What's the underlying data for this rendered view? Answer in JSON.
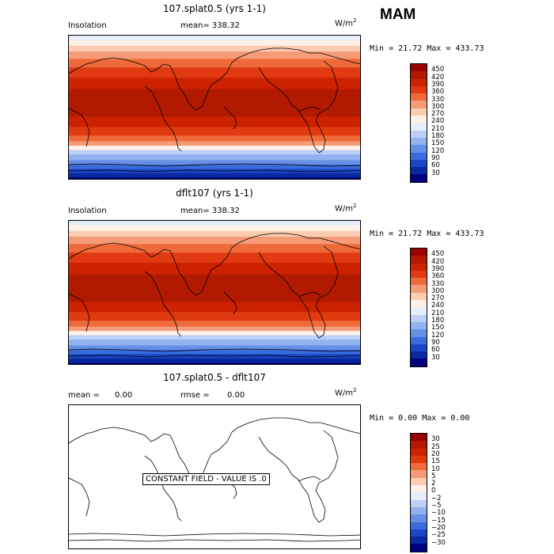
{
  "season": "MAM",
  "panels": [
    {
      "title": "107.splat0.5 (yrs 1-1)",
      "variable": "Insolation",
      "stat_text": "mean= 338.32",
      "units": "W/m",
      "units_sup": "2",
      "minmax": "Min =  21.72 Max = 433.73",
      "levels": [
        "450",
        "420",
        "390",
        "360",
        "330",
        "300",
        "270",
        "240",
        "210",
        "180",
        "150",
        "120",
        "90",
        "60",
        "30"
      ],
      "colors": [
        "#990000",
        "#b21a00",
        "#cc2200",
        "#e03a10",
        "#ef6a3a",
        "#f59b78",
        "#fbcbb2",
        "#fef0e6",
        "#e6eefc",
        "#bcd0f6",
        "#92b2ef",
        "#6690e6",
        "#3a6cdc",
        "#1a46c4",
        "#082a9e",
        "#000080"
      ]
    },
    {
      "title": "dflt107 (yrs 1-1)",
      "variable": "Insolation",
      "stat_text": "mean= 338.32",
      "units": "W/m",
      "units_sup": "2",
      "minmax": "Min =  21.72 Max = 433.73",
      "levels": [
        "450",
        "420",
        "390",
        "360",
        "330",
        "300",
        "270",
        "240",
        "210",
        "180",
        "150",
        "120",
        "90",
        "60",
        "30"
      ],
      "colors": [
        "#990000",
        "#b21a00",
        "#cc2200",
        "#e03a10",
        "#ef6a3a",
        "#f59b78",
        "#fbcbb2",
        "#fef0e6",
        "#e6eefc",
        "#bcd0f6",
        "#92b2ef",
        "#6690e6",
        "#3a6cdc",
        "#1a46c4",
        "#082a9e",
        "#000080"
      ]
    },
    {
      "title": "107.splat0.5 - dflt107",
      "mean_label": "mean =",
      "mean_value": "0.00",
      "rmse_label": "rmse =",
      "rmse_value": "0.00",
      "units": "W/m",
      "units_sup": "2",
      "minmax": "Min =   0.00 Max =   0.00",
      "levels": [
        "30",
        "25",
        "20",
        "15",
        "10",
        "5",
        "2",
        "0",
        "−2",
        "−5",
        "−10",
        "−15",
        "−20",
        "−25",
        "−30"
      ],
      "colors": [
        "#990000",
        "#b21a00",
        "#cc2200",
        "#e03a10",
        "#ef6a3a",
        "#f59b78",
        "#fbcbb2",
        "#fef0e6",
        "#e6eefc",
        "#bcd0f6",
        "#92b2ef",
        "#6690e6",
        "#3a6cdc",
        "#1a46c4",
        "#082a9e",
        "#000080"
      ],
      "constant_note": "CONSTANT FIELD - VALUE IS .0"
    }
  ],
  "field_bands": [
    {
      "to_frac": 0.03,
      "level": 8
    },
    {
      "to_frac": 0.07,
      "level": 7
    },
    {
      "to_frac": 0.11,
      "level": 6
    },
    {
      "to_frac": 0.16,
      "level": 5
    },
    {
      "to_frac": 0.22,
      "level": 4
    },
    {
      "to_frac": 0.29,
      "level": 3
    },
    {
      "to_frac": 0.37,
      "level": 2
    },
    {
      "to_frac": 0.56,
      "level": 1
    },
    {
      "to_frac": 0.63,
      "level": 2
    },
    {
      "to_frac": 0.69,
      "level": 3
    },
    {
      "to_frac": 0.73,
      "level": 4
    },
    {
      "to_frac": 0.76,
      "level": 5
    },
    {
      "to_frac": 0.79,
      "level": 7
    },
    {
      "to_frac": 0.82,
      "level": 9
    },
    {
      "to_frac": 0.86,
      "level": 10
    },
    {
      "to_frac": 0.89,
      "level": 11
    },
    {
      "to_frac": 0.92,
      "level": 12
    },
    {
      "to_frac": 0.95,
      "level": 13
    },
    {
      "to_frac": 0.98,
      "level": 14
    },
    {
      "to_frac": 1.0,
      "level": 15
    }
  ]
}
